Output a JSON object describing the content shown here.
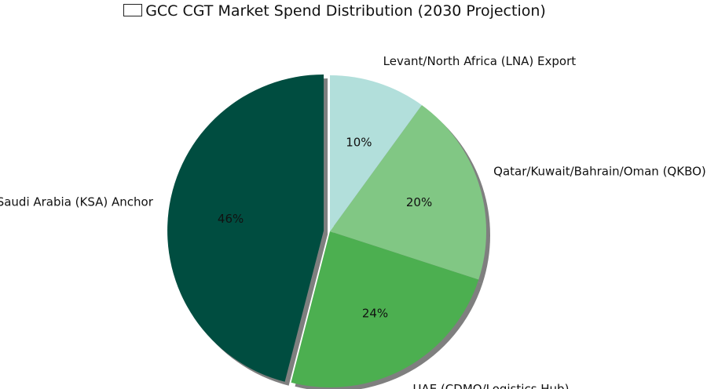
{
  "chart_data": {
    "type": "pie",
    "title": "GCC CGT Market Spend Distribution (2030 Projection)",
    "title_prefix_glyph": "flag",
    "start_angle_deg": 90,
    "direction": "counterclockwise",
    "shadow": true,
    "slices": [
      {
        "label": "Saudi Arabia (KSA) Anchor",
        "value": 46,
        "pct_label": "46%",
        "color": "#004d40",
        "exploded": true
      },
      {
        "label": "UAE (CDMO/Logistics Hub)",
        "value": 24,
        "pct_label": "24%",
        "color": "#4caf50",
        "exploded": false
      },
      {
        "label": "Qatar/Kuwait/Bahrain/Oman (QKBO)",
        "value": 20,
        "pct_label": "20%",
        "color": "#81c784",
        "exploded": false
      },
      {
        "label": "Levant/North Africa (LNA) Export",
        "value": 10,
        "pct_label": "10%",
        "color": "#b2dfdb",
        "exploded": false
      }
    ]
  }
}
